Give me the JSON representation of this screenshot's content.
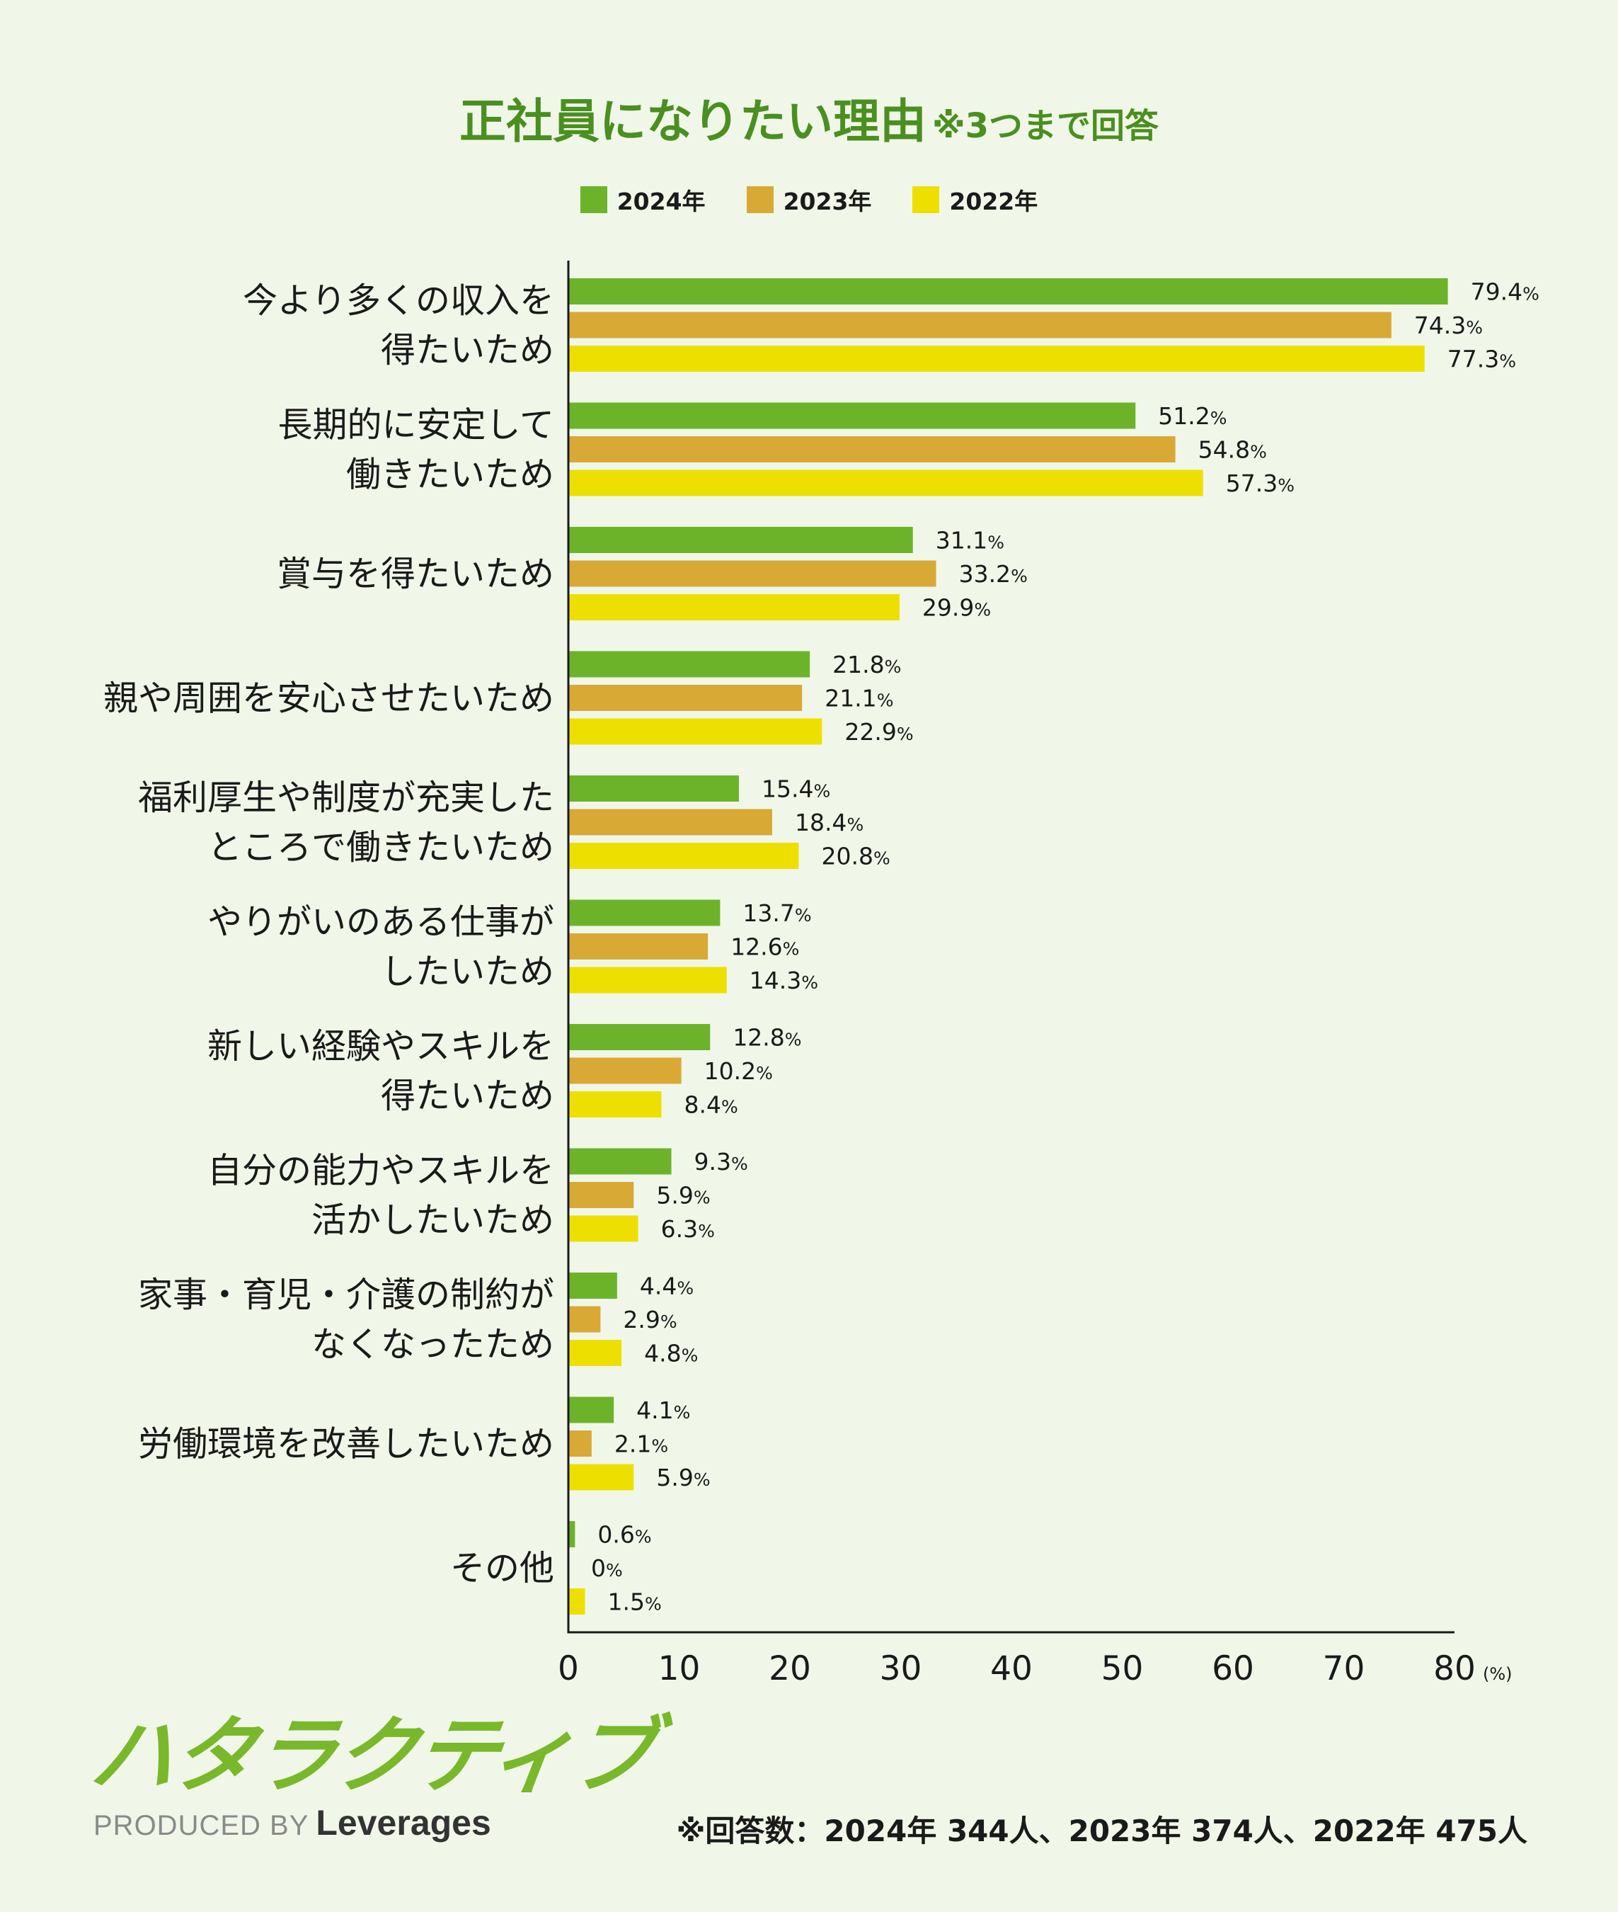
{
  "title": {
    "main": "正社員になりたい理由",
    "sub": "※3つまで回答"
  },
  "chart_data": {
    "type": "bar",
    "orientation": "horizontal",
    "categories": [
      [
        "今より多くの収入を",
        "得たいため"
      ],
      [
        "長期的に安定して",
        "働きたいため"
      ],
      [
        "賞与を得たいため"
      ],
      [
        "親や周囲を安心させたいため"
      ],
      [
        "福利厚生や制度が充実した",
        "ところで働きたいため"
      ],
      [
        "やりがいのある仕事が",
        "したいため"
      ],
      [
        "新しい経験やスキルを",
        "得たいため"
      ],
      [
        "自分の能力やスキルを",
        "活かしたいため"
      ],
      [
        "家事・育児・介護の制約が",
        "なくなったため"
      ],
      [
        "労働環境を改善したいため"
      ],
      [
        "その他"
      ]
    ],
    "series": [
      {
        "name": "2024年",
        "color": "#6db32a",
        "values": [
          79.4,
          51.2,
          31.1,
          21.8,
          15.4,
          13.7,
          12.8,
          9.3,
          4.4,
          4.1,
          0.6
        ]
      },
      {
        "name": "2023年",
        "color": "#d9a935",
        "values": [
          74.3,
          54.8,
          33.2,
          21.1,
          18.4,
          12.6,
          10.2,
          5.9,
          2.9,
          2.1,
          0
        ]
      },
      {
        "name": "2022年",
        "color": "#ede000",
        "values": [
          77.3,
          57.3,
          29.9,
          22.9,
          20.8,
          14.3,
          8.4,
          6.3,
          4.8,
          5.9,
          1.5
        ]
      }
    ],
    "value_suffix": "%",
    "xlim": [
      0,
      80
    ],
    "xticks": [
      0,
      10,
      20,
      30,
      40,
      50,
      60,
      70,
      80
    ],
    "x_unit": "(%)",
    "grid": false,
    "legend_position": "top-center"
  },
  "logo": {
    "name": "ハタラクティブ",
    "produced_by": "PRODUCED BY",
    "brand": "Leverages"
  },
  "footnote": "※回答数：2024年 344人、2023年 374人、2022年 475人"
}
